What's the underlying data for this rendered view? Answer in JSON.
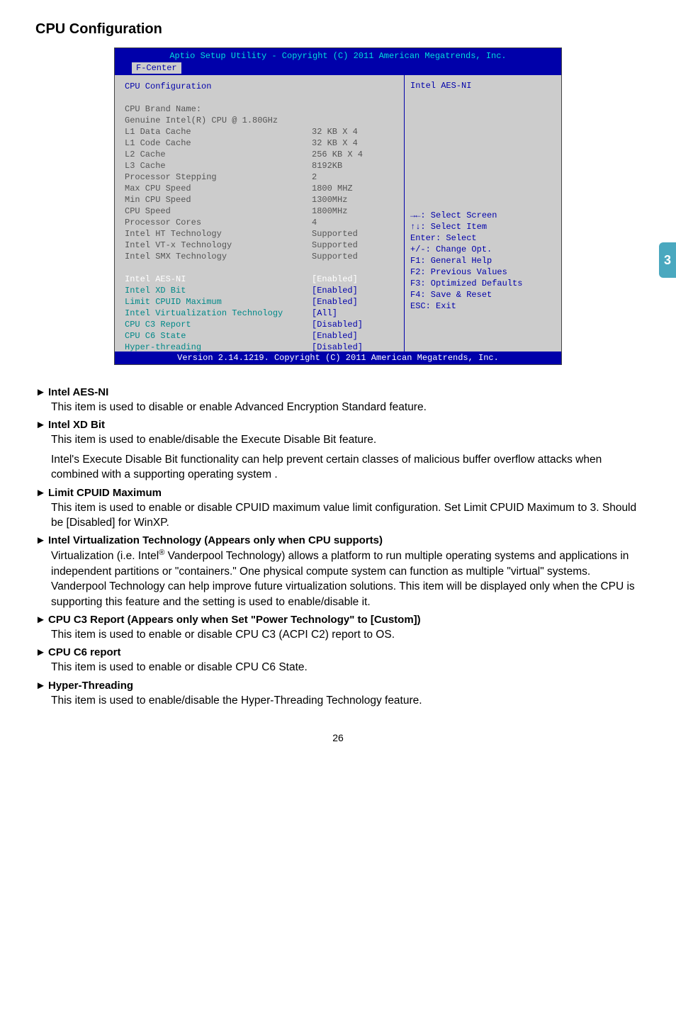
{
  "sideTab": "3",
  "pageNumber": "26",
  "sectionTitle": "CPU Configuration",
  "bios": {
    "headerLine": "Aptio Setup Utility - Copyright (C) 2011 American Megatrends, Inc.",
    "tab": "F-Center",
    "footer": "Version 2.14.1219. Copyright (C) 2011 American Megatrends, Inc.",
    "helpTitle": "Intel AES-NI",
    "rows": [
      {
        "label": "CPU Configuration",
        "value": "",
        "lcls": "c-blue",
        "vcls": ""
      },
      {
        "label": "",
        "value": ""
      },
      {
        "label": "CPU Brand Name:",
        "value": "",
        "lcls": "c-gray"
      },
      {
        "label": "Genuine Intel(R) CPU @ 1.80GHz",
        "value": "",
        "lcls": "c-gray"
      },
      {
        "label": "L1 Data Cache",
        "value": "32 KB X 4",
        "lcls": "c-gray",
        "vcls": "c-gray"
      },
      {
        "label": "L1 Code Cache",
        "value": "32 KB X 4",
        "lcls": "c-gray",
        "vcls": "c-gray"
      },
      {
        "label": "L2 Cache",
        "value": "256 KB X 4",
        "lcls": "c-gray",
        "vcls": "c-gray"
      },
      {
        "label": "L3 Cache",
        "value": "8192KB",
        "lcls": "c-gray",
        "vcls": "c-gray"
      },
      {
        "label": "Processor Stepping",
        "value": "2",
        "lcls": "c-gray",
        "vcls": "c-gray"
      },
      {
        "label": "Max CPU Speed",
        "value": "1800 MHZ",
        "lcls": "c-gray",
        "vcls": "c-gray"
      },
      {
        "label": "Min CPU Speed",
        "value": "1300MHz",
        "lcls": "c-gray",
        "vcls": "c-gray"
      },
      {
        "label": "CPU Speed",
        "value": "1800MHz",
        "lcls": "c-gray",
        "vcls": "c-gray"
      },
      {
        "label": "Processor Cores",
        "value": "4",
        "lcls": "c-gray",
        "vcls": "c-gray"
      },
      {
        "label": "Intel HT Technology",
        "value": "Supported",
        "lcls": "c-gray",
        "vcls": "c-gray"
      },
      {
        "label": "Intel VT-x Technology",
        "value": "Supported",
        "lcls": "c-gray",
        "vcls": "c-gray"
      },
      {
        "label": "Intel SMX Technology",
        "value": "Supported",
        "lcls": "c-gray",
        "vcls": "c-gray"
      },
      {
        "label": "",
        "value": ""
      },
      {
        "label": "Intel AES-NI",
        "value": "[Enabled]",
        "lcls": "c-white",
        "vcls": "c-white"
      },
      {
        "label": "Intel XD Bit",
        "value": "[Enabled]",
        "lcls": "c-teal",
        "vcls": "c-blue"
      },
      {
        "label": "Limit CPUID Maximum",
        "value": "[Enabled]",
        "lcls": "c-teal",
        "vcls": "c-blue"
      },
      {
        "label": "Intel Virtualization Technology",
        "value": "[All]",
        "lcls": "c-teal",
        "vcls": "c-blue"
      },
      {
        "label": "CPU C3 Report",
        "value": "[Disabled]",
        "lcls": "c-teal",
        "vcls": "c-blue"
      },
      {
        "label": "CPU C6 State",
        "value": "[Enabled]",
        "lcls": "c-teal",
        "vcls": "c-blue"
      },
      {
        "label": "Hyper-threading",
        "value": "[Disabled]",
        "lcls": "c-teal",
        "vcls": "c-blue"
      }
    ],
    "legend": [
      "→←: Select Screen",
      "↑↓: Select Item",
      "Enter: Select",
      "+/-: Change Opt.",
      "F1: General Help",
      "F2: Previous Values",
      "F3: Optimized Defaults",
      "F4: Save & Reset",
      "ESC: Exit"
    ]
  },
  "items": [
    {
      "head": "Intel AES-NI",
      "paras": [
        "This item is used to disable or enable Advanced Encryption Standard feature."
      ]
    },
    {
      "head": "Intel XD Bit",
      "paras": [
        "This item is used to enable/disable the Execute Disable Bit feature.",
        "Intel's Execute Disable Bit functionality can help prevent certain classes of malicious buffer overflow attacks when combined with a supporting operating system ."
      ]
    },
    {
      "head": "Limit CPUID Maximum",
      "paras": [
        "This item is used to enable or disable CPUID maximum value limit configuration. Set Limit CPUID Maximum to 3. Should be [Disabled] for WinXP."
      ]
    },
    {
      "head": "Intel Virtualization Technology  (Appears only when CPU supports)",
      "paras": [
        "Virtualization (i.e. Intel<sup>®</sup> Vanderpool Technology) allows a platform to run multiple operating systems and applications in independent partitions or \"containers.\" One physical compute system can function as multiple \"virtual\" systems. Vanderpool Technology can help improve future virtualization solutions. This item will be displayed only when the CPU is supporting this feature and the setting is used to enable/disable it."
      ]
    },
    {
      "head": "CPU C3 Report (Appears only when Set \"Power Technology\" to [Custom])",
      "paras": [
        "This item is used to enable or disable CPU C3 (ACPI C2) report to OS."
      ]
    },
    {
      "head": "CPU C6 report",
      "paras": [
        "This item is used to enable or disable CPU C6 State."
      ]
    },
    {
      "head": "Hyper-Threading",
      "paras": [
        "This item is used to enable/disable the Hyper-Threading Technology feature."
      ]
    }
  ]
}
